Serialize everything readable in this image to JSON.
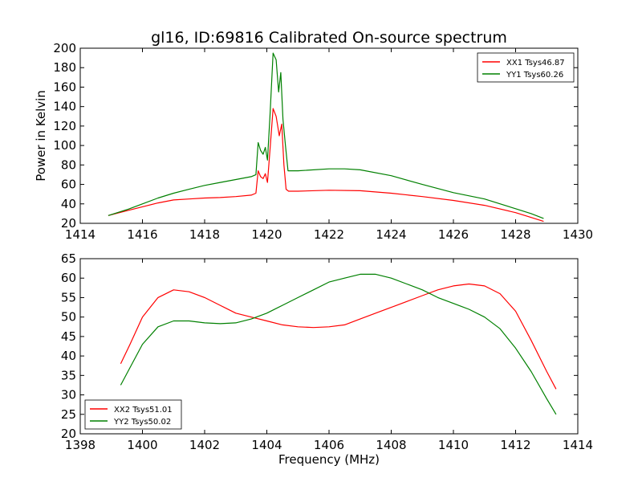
{
  "chart_data": [
    {
      "type": "line",
      "title": "gl16, ID:69816 Calibrated On-source spectrum",
      "xlabel": "",
      "ylabel": "Power in Kelvin",
      "xlim": [
        1414,
        1430
      ],
      "ylim": [
        20,
        200
      ],
      "xticks": [
        1414,
        1416,
        1418,
        1420,
        1422,
        1424,
        1426,
        1428,
        1430
      ],
      "yticks": [
        20,
        40,
        60,
        80,
        100,
        120,
        140,
        160,
        180,
        200
      ],
      "grid": false,
      "legend_position": "top-right",
      "series": [
        {
          "name": "XX1 Tsys46.87",
          "color": "#ff0000",
          "points": [
            [
              1414.9,
              28
            ],
            [
              1415.5,
              33
            ],
            [
              1416.0,
              37
            ],
            [
              1416.5,
              41
            ],
            [
              1417.0,
              44
            ],
            [
              1417.5,
              45
            ],
            [
              1418.0,
              46
            ],
            [
              1418.5,
              46.5
            ],
            [
              1419.0,
              47.5
            ],
            [
              1419.5,
              49
            ],
            [
              1419.65,
              51
            ],
            [
              1419.72,
              74
            ],
            [
              1419.8,
              68
            ],
            [
              1419.88,
              66
            ],
            [
              1419.95,
              71
            ],
            [
              1420.02,
              62
            ],
            [
              1420.1,
              95
            ],
            [
              1420.2,
              138
            ],
            [
              1420.3,
              130
            ],
            [
              1420.4,
              110
            ],
            [
              1420.48,
              122
            ],
            [
              1420.55,
              80
            ],
            [
              1420.62,
              55
            ],
            [
              1420.7,
              53
            ],
            [
              1421.0,
              53
            ],
            [
              1422.0,
              54
            ],
            [
              1423.0,
              53.5
            ],
            [
              1424.0,
              51
            ],
            [
              1425.0,
              47.5
            ],
            [
              1426.0,
              43.5
            ],
            [
              1427.0,
              38.5
            ],
            [
              1428.0,
              31
            ],
            [
              1428.5,
              26
            ],
            [
              1428.9,
              22
            ]
          ]
        },
        {
          "name": "YY1 Tsys60.26",
          "color": "#008000",
          "points": [
            [
              1414.9,
              28
            ],
            [
              1415.5,
              34
            ],
            [
              1416.0,
              40
            ],
            [
              1416.5,
              46
            ],
            [
              1417.0,
              51
            ],
            [
              1417.5,
              55
            ],
            [
              1418.0,
              59
            ],
            [
              1418.5,
              62
            ],
            [
              1419.0,
              65
            ],
            [
              1419.5,
              68
            ],
            [
              1419.65,
              70
            ],
            [
              1419.72,
              103
            ],
            [
              1419.8,
              95
            ],
            [
              1419.88,
              91
            ],
            [
              1419.95,
              98
            ],
            [
              1420.02,
              85
            ],
            [
              1420.1,
              130
            ],
            [
              1420.2,
              195
            ],
            [
              1420.3,
              188
            ],
            [
              1420.38,
              155
            ],
            [
              1420.45,
              175
            ],
            [
              1420.52,
              127
            ],
            [
              1420.6,
              100
            ],
            [
              1420.68,
              74
            ],
            [
              1421.0,
              74
            ],
            [
              1422.0,
              76
            ],
            [
              1422.5,
              76
            ],
            [
              1423.0,
              75
            ],
            [
              1424.0,
              69
            ],
            [
              1425.0,
              60
            ],
            [
              1426.0,
              51.5
            ],
            [
              1427.0,
              45
            ],
            [
              1428.0,
              35
            ],
            [
              1428.5,
              30
            ],
            [
              1428.9,
              25
            ]
          ]
        }
      ]
    },
    {
      "type": "line",
      "title": "",
      "xlabel": "Frequency (MHz)",
      "ylabel": "",
      "xlim": [
        1398,
        1414
      ],
      "ylim": [
        20,
        65
      ],
      "xticks": [
        1398,
        1400,
        1402,
        1404,
        1406,
        1408,
        1410,
        1412,
        1414
      ],
      "yticks": [
        20,
        25,
        30,
        35,
        40,
        45,
        50,
        55,
        60,
        65
      ],
      "grid": false,
      "legend_position": "bottom-left",
      "series": [
        {
          "name": "XX2 Tsys51.01",
          "color": "#ff0000",
          "points": [
            [
              1399.3,
              38
            ],
            [
              1399.6,
              43
            ],
            [
              1400.0,
              50
            ],
            [
              1400.5,
              55
            ],
            [
              1401.0,
              57
            ],
            [
              1401.5,
              56.5
            ],
            [
              1402.0,
              55
            ],
            [
              1402.5,
              53
            ],
            [
              1403.0,
              51
            ],
            [
              1403.5,
              50
            ],
            [
              1404.0,
              49
            ],
            [
              1404.5,
              48
            ],
            [
              1405.0,
              47.5
            ],
            [
              1405.5,
              47.3
            ],
            [
              1406.0,
              47.5
            ],
            [
              1406.5,
              48
            ],
            [
              1407.0,
              49.5
            ],
            [
              1407.5,
              51
            ],
            [
              1408.0,
              52.5
            ],
            [
              1408.5,
              54
            ],
            [
              1409.0,
              55.5
            ],
            [
              1409.5,
              57
            ],
            [
              1410.0,
              58
            ],
            [
              1410.5,
              58.5
            ],
            [
              1411.0,
              58
            ],
            [
              1411.5,
              56
            ],
            [
              1412.0,
              51.5
            ],
            [
              1412.5,
              44
            ],
            [
              1413.0,
              36
            ],
            [
              1413.3,
              31.5
            ]
          ]
        },
        {
          "name": "YY2 Tsys50.02",
          "color": "#008000",
          "points": [
            [
              1399.3,
              32.5
            ],
            [
              1399.6,
              37
            ],
            [
              1400.0,
              43
            ],
            [
              1400.5,
              47.5
            ],
            [
              1401.0,
              49
            ],
            [
              1401.5,
              49
            ],
            [
              1402.0,
              48.5
            ],
            [
              1402.5,
              48.3
            ],
            [
              1403.0,
              48.5
            ],
            [
              1403.5,
              49.5
            ],
            [
              1404.0,
              51
            ],
            [
              1404.5,
              53
            ],
            [
              1405.0,
              55
            ],
            [
              1405.5,
              57
            ],
            [
              1406.0,
              59
            ],
            [
              1406.5,
              60
            ],
            [
              1407.0,
              61
            ],
            [
              1407.5,
              61
            ],
            [
              1408.0,
              60
            ],
            [
              1408.5,
              58.5
            ],
            [
              1409.0,
              57
            ],
            [
              1409.5,
              55
            ],
            [
              1410.0,
              53.5
            ],
            [
              1410.5,
              52
            ],
            [
              1411.0,
              50
            ],
            [
              1411.5,
              47
            ],
            [
              1412.0,
              42
            ],
            [
              1412.5,
              36
            ],
            [
              1413.0,
              29
            ],
            [
              1413.3,
              25
            ]
          ]
        }
      ]
    }
  ]
}
